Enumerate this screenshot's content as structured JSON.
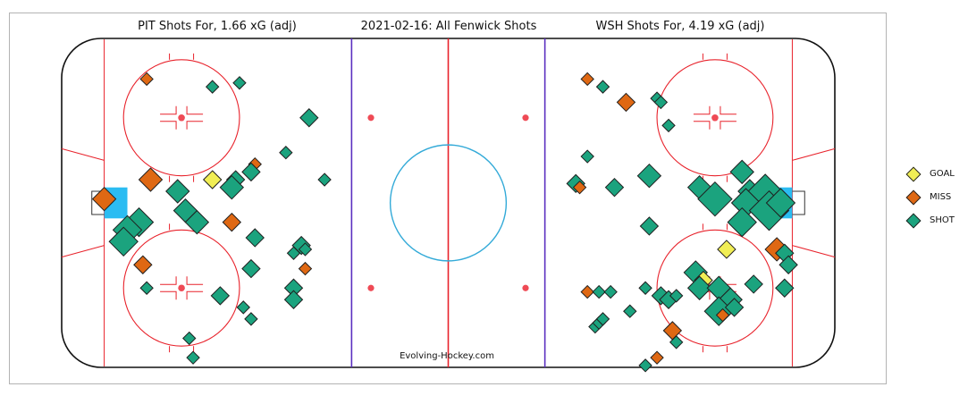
{
  "titles": {
    "left": "PIT Shots For, 1.66 xG (adj)",
    "center": "2021-02-16: All Fenwick Shots",
    "right": "WSH Shots For, 4.19 xG (adj)"
  },
  "credit": "Evolving-Hockey.com",
  "colors": {
    "GOAL": "#f1ee55",
    "MISS": "#df6813",
    "SHOT": "#1ba37e",
    "board": "#111111",
    "red_line": "#e8222b",
    "blue_line": "#5a2fc0",
    "crease": "#2bbcf2",
    "center_circle": "#33aad8",
    "faceoff_dot": "#ef4a55"
  },
  "chart_data": {
    "type": "scatter",
    "title": "2021-02-16: All Fenwick Shots",
    "xlim": [
      -100,
      100
    ],
    "ylim": [
      -42.5,
      42.5
    ],
    "legend": {
      "placement": "right",
      "entries": [
        "GOAL",
        "MISS",
        "SHOT"
      ]
    },
    "series": [
      {
        "name": "PIT",
        "points": [
          {
            "x": -78,
            "y": 32,
            "type": "MISS",
            "size": 1
          },
          {
            "x": -61,
            "y": 30,
            "type": "SHOT",
            "size": 1
          },
          {
            "x": -54,
            "y": 31,
            "type": "SHOT",
            "size": 1
          },
          {
            "x": -36,
            "y": 22,
            "type": "SHOT",
            "size": 2
          },
          {
            "x": -42,
            "y": 13,
            "type": "SHOT",
            "size": 1
          },
          {
            "x": -50,
            "y": 10,
            "type": "MISS",
            "size": 1
          },
          {
            "x": -51,
            "y": 8,
            "type": "SHOT",
            "size": 2
          },
          {
            "x": -55,
            "y": 6,
            "type": "SHOT",
            "size": 2
          },
          {
            "x": -61,
            "y": 6,
            "type": "GOAL",
            "size": 2
          },
          {
            "x": -56,
            "y": 4,
            "type": "SHOT",
            "size": 3
          },
          {
            "x": -77,
            "y": 6,
            "type": "MISS",
            "size": 3
          },
          {
            "x": -70,
            "y": 3,
            "type": "SHOT",
            "size": 3
          },
          {
            "x": -89,
            "y": 1,
            "type": "MISS",
            "size": 3
          },
          {
            "x": -32,
            "y": 6,
            "type": "SHOT",
            "size": 1
          },
          {
            "x": -68,
            "y": -2,
            "type": "SHOT",
            "size": 3
          },
          {
            "x": -65,
            "y": -5,
            "type": "SHOT",
            "size": 3
          },
          {
            "x": -80,
            "y": -5,
            "type": "SHOT",
            "size": 4
          },
          {
            "x": -83,
            "y": -7,
            "type": "SHOT",
            "size": 4
          },
          {
            "x": -84,
            "y": -10,
            "type": "SHOT",
            "size": 4
          },
          {
            "x": -56,
            "y": -5,
            "type": "MISS",
            "size": 2
          },
          {
            "x": -50,
            "y": -9,
            "type": "SHOT",
            "size": 2
          },
          {
            "x": -38,
            "y": -11,
            "type": "SHOT",
            "size": 2
          },
          {
            "x": -37,
            "y": -12,
            "type": "SHOT",
            "size": 1
          },
          {
            "x": -40,
            "y": -13,
            "type": "SHOT",
            "size": 1
          },
          {
            "x": -79,
            "y": -16,
            "type": "MISS",
            "size": 2
          },
          {
            "x": -51,
            "y": -17,
            "type": "SHOT",
            "size": 2
          },
          {
            "x": -37,
            "y": -17,
            "type": "MISS",
            "size": 1
          },
          {
            "x": -78,
            "y": -22,
            "type": "SHOT",
            "size": 1
          },
          {
            "x": -59,
            "y": -24,
            "type": "SHOT",
            "size": 2
          },
          {
            "x": -53,
            "y": -27,
            "type": "SHOT",
            "size": 1
          },
          {
            "x": -51,
            "y": -30,
            "type": "SHOT",
            "size": 1
          },
          {
            "x": -40,
            "y": -22,
            "type": "SHOT",
            "size": 2
          },
          {
            "x": -40,
            "y": -25,
            "type": "MISS",
            "size": 1
          },
          {
            "x": -40,
            "y": -25,
            "type": "SHOT",
            "size": 2
          },
          {
            "x": -67,
            "y": -35,
            "type": "SHOT",
            "size": 1
          },
          {
            "x": -66,
            "y": -40,
            "type": "SHOT",
            "size": 1
          }
        ]
      },
      {
        "name": "WSH",
        "points": [
          {
            "x": 36,
            "y": 32,
            "type": "MISS",
            "size": 1
          },
          {
            "x": 40,
            "y": 30,
            "type": "SHOT",
            "size": 1
          },
          {
            "x": 46,
            "y": 26,
            "type": "MISS",
            "size": 2
          },
          {
            "x": 54,
            "y": 27,
            "type": "SHOT",
            "size": 1
          },
          {
            "x": 55,
            "y": 26,
            "type": "SHOT",
            "size": 1
          },
          {
            "x": 57,
            "y": 20,
            "type": "SHOT",
            "size": 1
          },
          {
            "x": 36,
            "y": 12,
            "type": "SHOT",
            "size": 1
          },
          {
            "x": 33,
            "y": 5,
            "type": "SHOT",
            "size": 2
          },
          {
            "x": 34,
            "y": 4,
            "type": "MISS",
            "size": 1
          },
          {
            "x": 43,
            "y": 4,
            "type": "SHOT",
            "size": 2
          },
          {
            "x": 52,
            "y": 7,
            "type": "SHOT",
            "size": 3
          },
          {
            "x": 65,
            "y": 4,
            "type": "SHOT",
            "size": 3
          },
          {
            "x": 69,
            "y": 1,
            "type": "SHOT",
            "size": 5
          },
          {
            "x": 76,
            "y": 8,
            "type": "SHOT",
            "size": 3
          },
          {
            "x": 78,
            "y": 3,
            "type": "SHOT",
            "size": 3
          },
          {
            "x": 80,
            "y": 2,
            "type": "MISS",
            "size": 3
          },
          {
            "x": 82,
            "y": 3,
            "type": "SHOT",
            "size": 5
          },
          {
            "x": 77,
            "y": 0,
            "type": "SHOT",
            "size": 4
          },
          {
            "x": 83,
            "y": -2,
            "type": "SHOT",
            "size": 6
          },
          {
            "x": 86,
            "y": 0,
            "type": "SHOT",
            "size": 4
          },
          {
            "x": 76,
            "y": -5,
            "type": "SHOT",
            "size": 4
          },
          {
            "x": 52,
            "y": -6,
            "type": "SHOT",
            "size": 2
          },
          {
            "x": 72,
            "y": -12,
            "type": "GOAL",
            "size": 2
          },
          {
            "x": 85,
            "y": -12,
            "type": "MISS",
            "size": 3
          },
          {
            "x": 87,
            "y": -13,
            "type": "SHOT",
            "size": 2
          },
          {
            "x": 88,
            "y": -16,
            "type": "SHOT",
            "size": 2
          },
          {
            "x": 64,
            "y": -18,
            "type": "SHOT",
            "size": 3
          },
          {
            "x": 66,
            "y": -20,
            "type": "GOAL",
            "size": 2
          },
          {
            "x": 65,
            "y": -22,
            "type": "SHOT",
            "size": 3
          },
          {
            "x": 70,
            "y": -22,
            "type": "SHOT",
            "size": 3
          },
          {
            "x": 79,
            "y": -21,
            "type": "SHOT",
            "size": 2
          },
          {
            "x": 87,
            "y": -22,
            "type": "SHOT",
            "size": 2
          },
          {
            "x": 73,
            "y": -25,
            "type": "SHOT",
            "size": 3
          },
          {
            "x": 70,
            "y": -28,
            "type": "SHOT",
            "size": 4
          },
          {
            "x": 74,
            "y": -27,
            "type": "SHOT",
            "size": 2
          },
          {
            "x": 51,
            "y": -22,
            "type": "SHOT",
            "size": 1
          },
          {
            "x": 55,
            "y": -24,
            "type": "SHOT",
            "size": 2
          },
          {
            "x": 57,
            "y": -25,
            "type": "SHOT",
            "size": 2
          },
          {
            "x": 59,
            "y": -24,
            "type": "SHOT",
            "size": 1
          },
          {
            "x": 36,
            "y": -23,
            "type": "MISS",
            "size": 1
          },
          {
            "x": 39,
            "y": -23,
            "type": "SHOT",
            "size": 1
          },
          {
            "x": 42,
            "y": -23,
            "type": "SHOT",
            "size": 1
          },
          {
            "x": 47,
            "y": -28,
            "type": "SHOT",
            "size": 1
          },
          {
            "x": 38,
            "y": -32,
            "type": "SHOT",
            "size": 1
          },
          {
            "x": 39,
            "y": -31,
            "type": "SHOT",
            "size": 1
          },
          {
            "x": 40,
            "y": -30,
            "type": "SHOT",
            "size": 1
          },
          {
            "x": 58,
            "y": -33,
            "type": "MISS",
            "size": 2
          },
          {
            "x": 59,
            "y": -36,
            "type": "SHOT",
            "size": 1
          },
          {
            "x": 54,
            "y": -40,
            "type": "MISS",
            "size": 1
          },
          {
            "x": 51,
            "y": -42,
            "type": "SHOT",
            "size": 1
          },
          {
            "x": 71,
            "y": -29,
            "type": "MISS",
            "size": 1
          }
        ]
      }
    ]
  }
}
